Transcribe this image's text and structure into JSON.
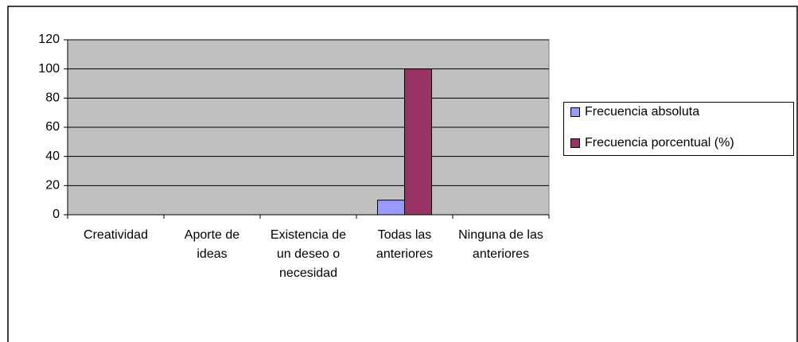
{
  "chart_data": {
    "type": "bar",
    "categories": [
      "Creatividad",
      "Aporte de ideas",
      "Existencia de un deseo o necesidad",
      "Todas las anteriores",
      "Ninguna de las anteriores"
    ],
    "series": [
      {
        "name": "Frecuencia absoluta",
        "color": "#9999ff",
        "values": [
          0,
          0,
          0,
          10,
          0
        ]
      },
      {
        "name": "Frecuencia porcentual (%)",
        "color": "#993366",
        "values": [
          0,
          0,
          0,
          100,
          0
        ]
      }
    ],
    "ylim": [
      0,
      120
    ],
    "yticks": [
      0,
      20,
      40,
      60,
      80,
      100,
      120
    ],
    "grid": true,
    "legend": "right"
  }
}
